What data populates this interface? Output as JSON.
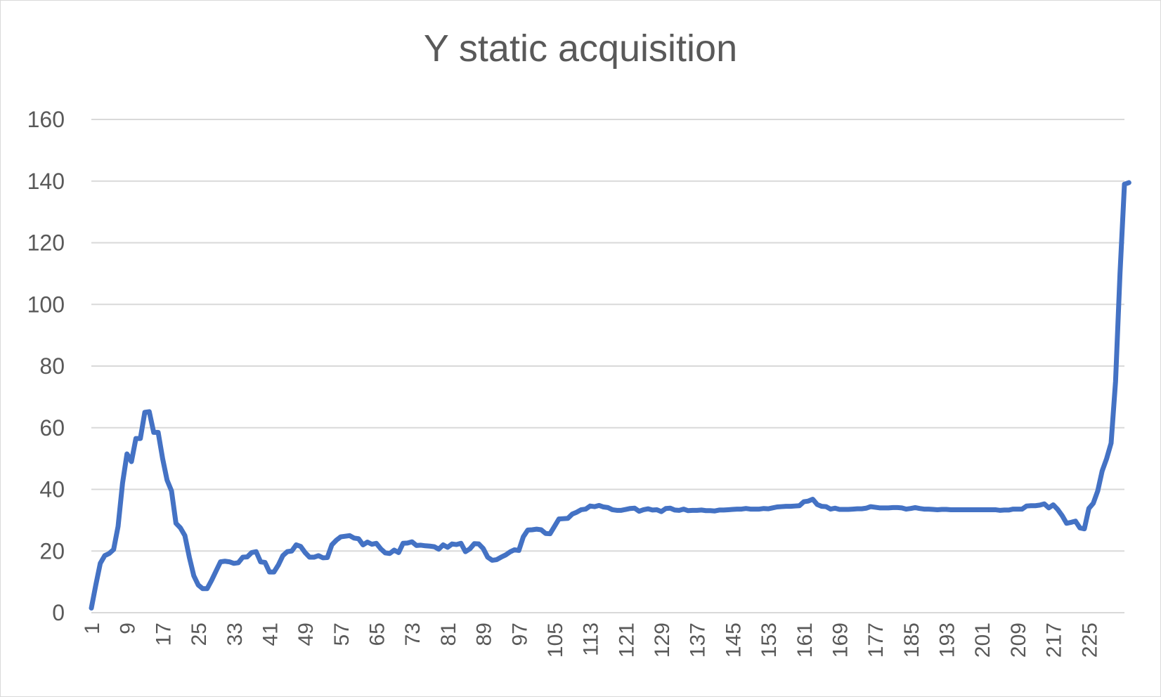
{
  "chart_data": {
    "type": "line",
    "title": "Y static acquisition",
    "xlabel": "",
    "ylabel": "",
    "ylim": [
      0,
      160
    ],
    "yticks": [
      0,
      20,
      40,
      60,
      80,
      100,
      120,
      140,
      160
    ],
    "xtick_labels": [
      "1",
      "9",
      "17",
      "25",
      "33",
      "41",
      "49",
      "57",
      "65",
      "73",
      "81",
      "89",
      "97",
      "105",
      "113",
      "121",
      "129",
      "137",
      "145",
      "153",
      "161",
      "169",
      "177",
      "185",
      "193",
      "201",
      "209",
      "217",
      "225"
    ],
    "x_range": [
      1,
      233
    ],
    "grid": true,
    "legend": "none",
    "line_color": "#4472C4",
    "grid_color": "#d9d9d9",
    "text_color": "#595959",
    "series": [
      {
        "values": [
          1.5,
          9,
          16,
          18.5,
          19.2,
          20.5,
          28,
          42,
          51.5,
          49,
          56.5,
          56.5,
          65,
          65.2,
          58.5,
          58.5,
          50,
          43,
          39.5,
          29,
          27.5,
          25,
          18,
          12,
          9,
          7.8,
          7.8,
          10.5,
          13.5,
          16.5,
          16.7,
          16.5,
          16,
          16.2,
          18,
          18.1,
          19.5,
          19.8,
          16.5,
          16.3,
          13.2,
          13.2,
          15.5,
          18.5,
          19.8,
          20,
          22,
          21.5,
          19.5,
          18,
          18,
          18.5,
          17.8,
          17.9,
          22,
          23.5,
          24.6,
          24.8,
          25,
          24.2,
          24,
          22,
          22.9,
          22.2,
          22.5,
          20.7,
          19.4,
          19.2,
          20.3,
          19.5,
          22.5,
          22.6,
          23,
          21.8,
          21.9,
          21.7,
          21.6,
          21.4,
          20.6,
          22,
          21.2,
          22.3,
          22.1,
          22.5,
          19.8,
          20.7,
          22.4,
          22.3,
          20.8,
          18,
          17,
          17.2,
          18,
          18.7,
          19.7,
          20.4,
          20.2,
          24.6,
          26.8,
          26.9,
          27.1,
          26.9,
          25.7,
          25.6,
          28,
          30.4,
          30.5,
          30.6,
          32,
          32.6,
          33.4,
          33.6,
          34.6,
          34.4,
          34.8,
          34.3,
          34.1,
          33.4,
          33.2,
          33.2,
          33.5,
          33.8,
          33.9,
          32.9,
          33.4,
          33.7,
          33.3,
          33.4,
          32.8,
          33.8,
          33.9,
          33.3,
          33.2,
          33.6,
          33.1,
          33.2,
          33.2,
          33.3,
          33.1,
          33.1,
          33,
          33.3,
          33.3,
          33.4,
          33.5,
          33.6,
          33.6,
          33.8,
          33.6,
          33.6,
          33.6,
          33.8,
          33.7,
          34,
          34.3,
          34.4,
          34.5,
          34.5,
          34.6,
          34.7,
          36,
          36.2,
          36.8,
          35.1,
          34.5,
          34.4,
          33.6,
          33.9,
          33.5,
          33.5,
          33.5,
          33.6,
          33.7,
          33.7,
          33.9,
          34.4,
          34.2,
          34,
          34,
          34,
          34.1,
          34.1,
          34,
          33.6,
          33.8,
          34.1,
          33.8,
          33.6,
          33.6,
          33.5,
          33.4,
          33.5,
          33.5,
          33.4,
          33.4,
          33.4,
          33.4,
          33.4,
          33.4,
          33.4,
          33.4,
          33.4,
          33.4,
          33.4,
          33.2,
          33.3,
          33.3,
          33.6,
          33.6,
          33.6,
          34.6,
          34.7,
          34.7,
          34.9,
          35.3,
          34,
          35,
          33.5,
          31.5,
          29,
          29.3,
          29.7,
          27.5,
          27.2,
          33.8,
          35.5,
          39.5,
          46,
          50,
          55,
          75,
          110,
          139,
          139.5
        ]
      }
    ]
  }
}
